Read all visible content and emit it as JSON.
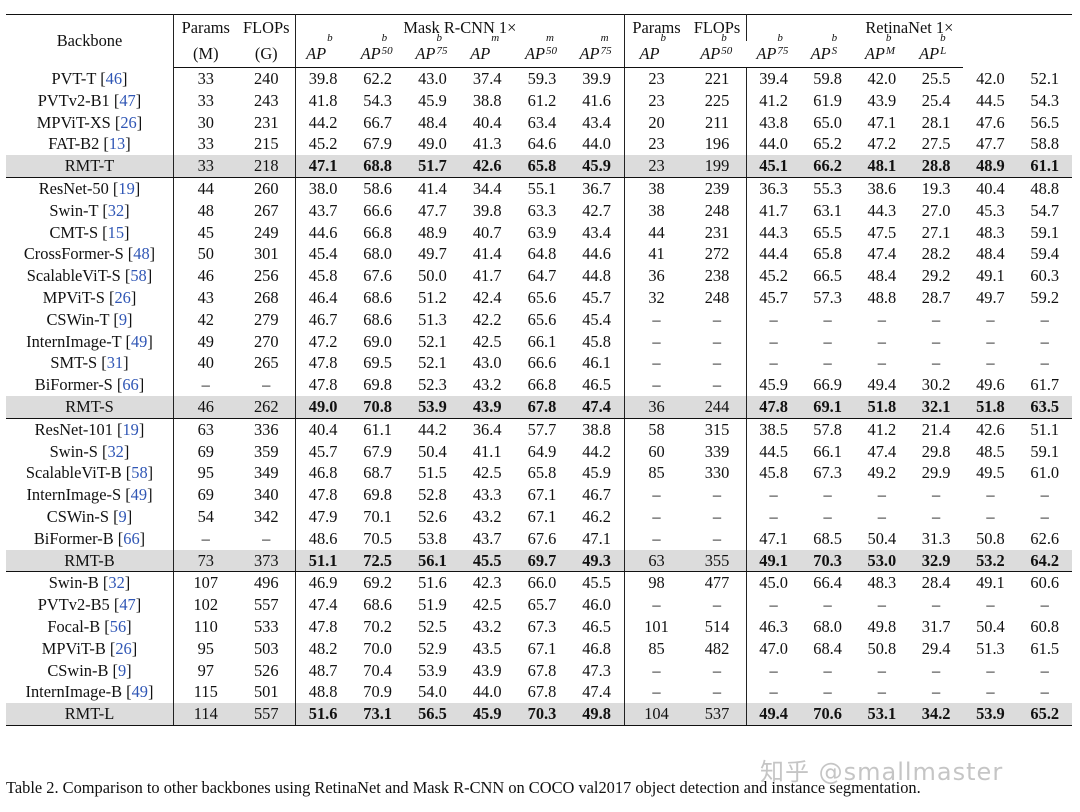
{
  "header": {
    "backbone": "Backbone",
    "params": "Params",
    "params_unit": "(M)",
    "flops": "FLOPs",
    "flops_unit": "(G)",
    "mask_group": "Mask R-CNN 1×",
    "retina_group": "RetinaNet 1×",
    "mask_cols": [
      {
        "base": "AP",
        "sup": "b",
        "sub": ""
      },
      {
        "base": "AP",
        "sup": "b",
        "sub": "50"
      },
      {
        "base": "AP",
        "sup": "b",
        "sub": "75"
      },
      {
        "base": "AP",
        "sup": "m",
        "sub": ""
      },
      {
        "base": "AP",
        "sup": "m",
        "sub": "50"
      },
      {
        "base": "AP",
        "sup": "m",
        "sub": "75"
      }
    ],
    "retina_cols": [
      {
        "base": "AP",
        "sup": "b",
        "sub": ""
      },
      {
        "base": "AP",
        "sup": "b",
        "sub": "50"
      },
      {
        "base": "AP",
        "sup": "b",
        "sub": "75"
      },
      {
        "base": "AP",
        "sup": "b",
        "sub": "S"
      },
      {
        "base": "AP",
        "sup": "b",
        "sub": "M"
      },
      {
        "base": "AP",
        "sup": "b",
        "sub": "L"
      }
    ]
  },
  "groups": [
    {
      "rows": [
        {
          "name": "PVT-T",
          "ref": "46",
          "cells": [
            "33",
            "240",
            "39.8",
            "62.2",
            "43.0",
            "37.4",
            "59.3",
            "39.9",
            "23",
            "221",
            "39.4",
            "59.8",
            "42.0",
            "25.5",
            "42.0",
            "52.1"
          ]
        },
        {
          "name": "PVTv2-B1",
          "ref": "47",
          "cells": [
            "33",
            "243",
            "41.8",
            "54.3",
            "45.9",
            "38.8",
            "61.2",
            "41.6",
            "23",
            "225",
            "41.2",
            "61.9",
            "43.9",
            "25.4",
            "44.5",
            "54.3"
          ]
        },
        {
          "name": "MPViT-XS",
          "ref": "26",
          "cells": [
            "30",
            "231",
            "44.2",
            "66.7",
            "48.4",
            "40.4",
            "63.4",
            "43.4",
            "20",
            "211",
            "43.8",
            "65.0",
            "47.1",
            "28.1",
            "47.6",
            "56.5"
          ]
        },
        {
          "name": "FAT-B2",
          "ref": "13",
          "cells": [
            "33",
            "215",
            "45.2",
            "67.9",
            "49.0",
            "41.3",
            "64.6",
            "44.0",
            "23",
            "196",
            "44.0",
            "65.2",
            "47.2",
            "27.5",
            "47.7",
            "58.8"
          ]
        },
        {
          "name": "RMT-T",
          "ref": "",
          "ours": true,
          "cells": [
            "33",
            "218",
            "47.1",
            "68.8",
            "51.7",
            "42.6",
            "65.8",
            "45.9",
            "23",
            "199",
            "45.1",
            "66.2",
            "48.1",
            "28.8",
            "48.9",
            "61.1"
          ]
        }
      ]
    },
    {
      "rows": [
        {
          "name": "ResNet-50",
          "ref": "19",
          "cells": [
            "44",
            "260",
            "38.0",
            "58.6",
            "41.4",
            "34.4",
            "55.1",
            "36.7",
            "38",
            "239",
            "36.3",
            "55.3",
            "38.6",
            "19.3",
            "40.4",
            "48.8"
          ]
        },
        {
          "name": "Swin-T",
          "ref": "32",
          "cells": [
            "48",
            "267",
            "43.7",
            "66.6",
            "47.7",
            "39.8",
            "63.3",
            "42.7",
            "38",
            "248",
            "41.7",
            "63.1",
            "44.3",
            "27.0",
            "45.3",
            "54.7"
          ]
        },
        {
          "name": "CMT-S",
          "ref": "15",
          "cells": [
            "45",
            "249",
            "44.6",
            "66.8",
            "48.9",
            "40.7",
            "63.9",
            "43.4",
            "44",
            "231",
            "44.3",
            "65.5",
            "47.5",
            "27.1",
            "48.3",
            "59.1"
          ]
        },
        {
          "name": "CrossFormer-S",
          "ref": "48",
          "cells": [
            "50",
            "301",
            "45.4",
            "68.0",
            "49.7",
            "41.4",
            "64.8",
            "44.6",
            "41",
            "272",
            "44.4",
            "65.8",
            "47.4",
            "28.2",
            "48.4",
            "59.4"
          ]
        },
        {
          "name": "ScalableViT-S",
          "ref": "58",
          "cells": [
            "46",
            "256",
            "45.8",
            "67.6",
            "50.0",
            "41.7",
            "64.7",
            "44.8",
            "36",
            "238",
            "45.2",
            "66.5",
            "48.4",
            "29.2",
            "49.1",
            "60.3"
          ]
        },
        {
          "name": "MPViT-S",
          "ref": "26",
          "cells": [
            "43",
            "268",
            "46.4",
            "68.6",
            "51.2",
            "42.4",
            "65.6",
            "45.7",
            "32",
            "248",
            "45.7",
            "57.3",
            "48.8",
            "28.7",
            "49.7",
            "59.2"
          ]
        },
        {
          "name": "CSWin-T",
          "ref": "9",
          "cells": [
            "42",
            "279",
            "46.7",
            "68.6",
            "51.3",
            "42.2",
            "65.6",
            "45.4",
            "–",
            "–",
            "–",
            "–",
            "–",
            "–",
            "–",
            "–"
          ]
        },
        {
          "name": "InternImage-T",
          "ref": "49",
          "cells": [
            "49",
            "270",
            "47.2",
            "69.0",
            "52.1",
            "42.5",
            "66.1",
            "45.8",
            "–",
            "–",
            "–",
            "–",
            "–",
            "–",
            "–",
            "–"
          ]
        },
        {
          "name": "SMT-S",
          "ref": "31",
          "cells": [
            "40",
            "265",
            "47.8",
            "69.5",
            "52.1",
            "43.0",
            "66.6",
            "46.1",
            "–",
            "–",
            "–",
            "–",
            "–",
            "–",
            "–",
            "–"
          ]
        },
        {
          "name": "BiFormer-S",
          "ref": "66",
          "cells": [
            "–",
            "–",
            "47.8",
            "69.8",
            "52.3",
            "43.2",
            "66.8",
            "46.5",
            "–",
            "–",
            "45.9",
            "66.9",
            "49.4",
            "30.2",
            "49.6",
            "61.7"
          ]
        },
        {
          "name": "RMT-S",
          "ref": "",
          "ours": true,
          "cells": [
            "46",
            "262",
            "49.0",
            "70.8",
            "53.9",
            "43.9",
            "67.8",
            "47.4",
            "36",
            "244",
            "47.8",
            "69.1",
            "51.8",
            "32.1",
            "51.8",
            "63.5"
          ]
        }
      ]
    },
    {
      "rows": [
        {
          "name": "ResNet-101",
          "ref": "19",
          "cells": [
            "63",
            "336",
            "40.4",
            "61.1",
            "44.2",
            "36.4",
            "57.7",
            "38.8",
            "58",
            "315",
            "38.5",
            "57.8",
            "41.2",
            "21.4",
            "42.6",
            "51.1"
          ]
        },
        {
          "name": "Swin-S",
          "ref": "32",
          "cells": [
            "69",
            "359",
            "45.7",
            "67.9",
            "50.4",
            "41.1",
            "64.9",
            "44.2",
            "60",
            "339",
            "44.5",
            "66.1",
            "47.4",
            "29.8",
            "48.5",
            "59.1"
          ]
        },
        {
          "name": "ScalableViT-B",
          "ref": "58",
          "cells": [
            "95",
            "349",
            "46.8",
            "68.7",
            "51.5",
            "42.5",
            "65.8",
            "45.9",
            "85",
            "330",
            "45.8",
            "67.3",
            "49.2",
            "29.9",
            "49.5",
            "61.0"
          ]
        },
        {
          "name": "InternImage-S",
          "ref": "49",
          "cells": [
            "69",
            "340",
            "47.8",
            "69.8",
            "52.8",
            "43.3",
            "67.1",
            "46.7",
            "–",
            "–",
            "–",
            "–",
            "–",
            "–",
            "–",
            "–"
          ]
        },
        {
          "name": "CSWin-S",
          "ref": "9",
          "cells": [
            "54",
            "342",
            "47.9",
            "70.1",
            "52.6",
            "43.2",
            "67.1",
            "46.2",
            "–",
            "–",
            "–",
            "–",
            "–",
            "–",
            "–",
            "–"
          ]
        },
        {
          "name": "BiFormer-B",
          "ref": "66",
          "cells": [
            "–",
            "–",
            "48.6",
            "70.5",
            "53.8",
            "43.7",
            "67.6",
            "47.1",
            "–",
            "–",
            "47.1",
            "68.5",
            "50.4",
            "31.3",
            "50.8",
            "62.6"
          ]
        },
        {
          "name": "RMT-B",
          "ref": "",
          "ours": true,
          "cells": [
            "73",
            "373",
            "51.1",
            "72.5",
            "56.1",
            "45.5",
            "69.7",
            "49.3",
            "63",
            "355",
            "49.1",
            "70.3",
            "53.0",
            "32.9",
            "53.2",
            "64.2"
          ]
        }
      ]
    },
    {
      "rows": [
        {
          "name": "Swin-B",
          "ref": "32",
          "cells": [
            "107",
            "496",
            "46.9",
            "69.2",
            "51.6",
            "42.3",
            "66.0",
            "45.5",
            "98",
            "477",
            "45.0",
            "66.4",
            "48.3",
            "28.4",
            "49.1",
            "60.6"
          ]
        },
        {
          "name": "PVTv2-B5",
          "ref": "47",
          "cells": [
            "102",
            "557",
            "47.4",
            "68.6",
            "51.9",
            "42.5",
            "65.7",
            "46.0",
            "–",
            "–",
            "–",
            "–",
            "–",
            "–",
            "–",
            "–"
          ]
        },
        {
          "name": "Focal-B",
          "ref": "56",
          "cells": [
            "110",
            "533",
            "47.8",
            "70.2",
            "52.5",
            "43.2",
            "67.3",
            "46.5",
            "101",
            "514",
            "46.3",
            "68.0",
            "49.8",
            "31.7",
            "50.4",
            "60.8"
          ]
        },
        {
          "name": "MPViT-B",
          "ref": "26",
          "cells": [
            "95",
            "503",
            "48.2",
            "70.0",
            "52.9",
            "43.5",
            "67.1",
            "46.8",
            "85",
            "482",
            "47.0",
            "68.4",
            "50.8",
            "29.4",
            "51.3",
            "61.5"
          ]
        },
        {
          "name": "CSwin-B",
          "ref": "9",
          "cells": [
            "97",
            "526",
            "48.7",
            "70.4",
            "53.9",
            "43.9",
            "67.8",
            "47.3",
            "–",
            "–",
            "–",
            "–",
            "–",
            "–",
            "–",
            "–"
          ]
        },
        {
          "name": "InternImage-B",
          "ref": "49",
          "cells": [
            "115",
            "501",
            "48.8",
            "70.9",
            "54.0",
            "44.0",
            "67.8",
            "47.4",
            "–",
            "–",
            "–",
            "–",
            "–",
            "–",
            "–",
            "–"
          ]
        },
        {
          "name": "RMT-L",
          "ref": "",
          "ours": true,
          "cells": [
            "114",
            "557",
            "51.6",
            "73.1",
            "56.5",
            "45.9",
            "70.3",
            "49.8",
            "104",
            "537",
            "49.4",
            "70.6",
            "53.1",
            "34.2",
            "53.9",
            "65.2"
          ]
        }
      ]
    }
  ],
  "caption": "Table 2. Comparison to other backbones using RetinaNet and Mask R-CNN on COCO val2017 object detection and instance segmentation.",
  "watermark": "知乎 @smallmaster"
}
